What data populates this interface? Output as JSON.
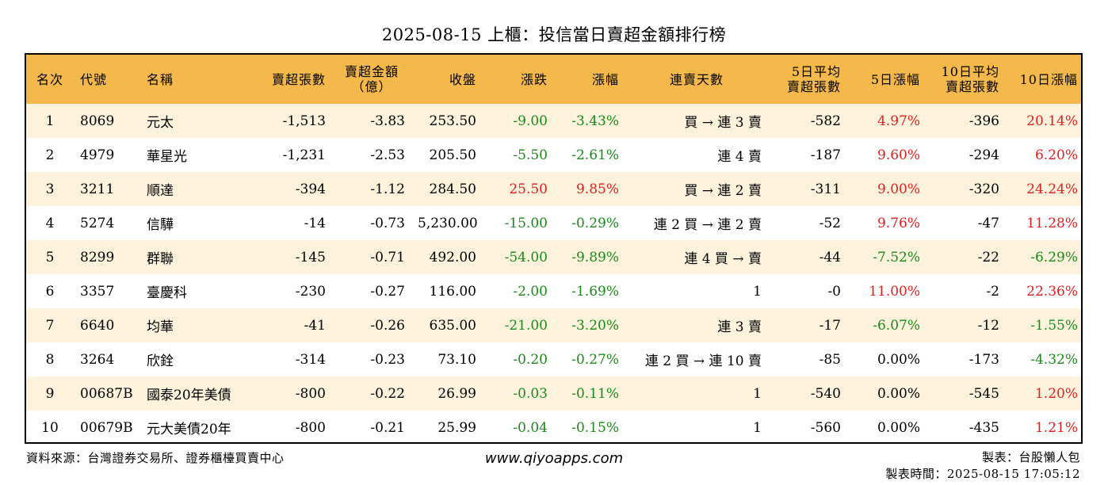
{
  "title": "2025-08-15 上櫃：投信當日賣超金額排行榜",
  "headers": {
    "rank": "名次",
    "code": "代號",
    "name": "名稱",
    "sell_lots": "賣超張數",
    "sell_amount_1": "賣超金額",
    "sell_amount_2": "（億）",
    "close": "收盤",
    "change": "漲跌",
    "pct": "漲幅",
    "streak": "連賣天數",
    "avg5_1": "5日平均",
    "avg5_2": "賣超張數",
    "pct5": "5日漲幅",
    "avg10_1": "10日平均",
    "avg10_2": "賣超張數",
    "pct10": "10日漲幅"
  },
  "rows": [
    {
      "rank": "1",
      "code": "8069",
      "name": "元太",
      "sell_lots": "-1,513",
      "sell_amount": "-3.83",
      "close": "253.50",
      "change": "-9.00",
      "change_color": "green",
      "pct": "-3.43%",
      "pct_color": "green",
      "streak": "買 → 連 3 賣",
      "avg5": "-582",
      "pct5": "4.97%",
      "pct5_color": "red",
      "avg10": "-396",
      "pct10": "20.14%",
      "pct10_color": "red"
    },
    {
      "rank": "2",
      "code": "4979",
      "name": "華星光",
      "sell_lots": "-1,231",
      "sell_amount": "-2.53",
      "close": "205.50",
      "change": "-5.50",
      "change_color": "green",
      "pct": "-2.61%",
      "pct_color": "green",
      "streak": "連 4 賣",
      "avg5": "-187",
      "pct5": "9.60%",
      "pct5_color": "red",
      "avg10": "-294",
      "pct10": "6.20%",
      "pct10_color": "red"
    },
    {
      "rank": "3",
      "code": "3211",
      "name": "順達",
      "sell_lots": "-394",
      "sell_amount": "-1.12",
      "close": "284.50",
      "change": "25.50",
      "change_color": "red",
      "pct": "9.85%",
      "pct_color": "red",
      "streak": "買 → 連 2 賣",
      "avg5": "-311",
      "pct5": "9.00%",
      "pct5_color": "red",
      "avg10": "-320",
      "pct10": "24.24%",
      "pct10_color": "red"
    },
    {
      "rank": "4",
      "code": "5274",
      "name": "信驊",
      "sell_lots": "-14",
      "sell_amount": "-0.73",
      "close": "5,230.00",
      "change": "-15.00",
      "change_color": "green",
      "pct": "-0.29%",
      "pct_color": "green",
      "streak": "連 2 買 → 連 2 賣",
      "avg5": "-52",
      "pct5": "9.76%",
      "pct5_color": "red",
      "avg10": "-47",
      "pct10": "11.28%",
      "pct10_color": "red"
    },
    {
      "rank": "5",
      "code": "8299",
      "name": "群聯",
      "sell_lots": "-145",
      "sell_amount": "-0.71",
      "close": "492.00",
      "change": "-54.00",
      "change_color": "green",
      "pct": "-9.89%",
      "pct_color": "green",
      "streak": "連 4 買 → 賣",
      "avg5": "-44",
      "pct5": "-7.52%",
      "pct5_color": "green",
      "avg10": "-22",
      "pct10": "-6.29%",
      "pct10_color": "green"
    },
    {
      "rank": "6",
      "code": "3357",
      "name": "臺慶科",
      "sell_lots": "-230",
      "sell_amount": "-0.27",
      "close": "116.00",
      "change": "-2.00",
      "change_color": "green",
      "pct": "-1.69%",
      "pct_color": "green",
      "streak": "1",
      "avg5": "-0",
      "pct5": "11.00%",
      "pct5_color": "red",
      "avg10": "-2",
      "pct10": "22.36%",
      "pct10_color": "red"
    },
    {
      "rank": "7",
      "code": "6640",
      "name": "均華",
      "sell_lots": "-41",
      "sell_amount": "-0.26",
      "close": "635.00",
      "change": "-21.00",
      "change_color": "green",
      "pct": "-3.20%",
      "pct_color": "green",
      "streak": "連 3 賣",
      "avg5": "-17",
      "pct5": "-6.07%",
      "pct5_color": "green",
      "avg10": "-12",
      "pct10": "-1.55%",
      "pct10_color": "green"
    },
    {
      "rank": "8",
      "code": "3264",
      "name": "欣銓",
      "sell_lots": "-314",
      "sell_amount": "-0.23",
      "close": "73.10",
      "change": "-0.20",
      "change_color": "green",
      "pct": "-0.27%",
      "pct_color": "green",
      "streak": "連 2 買 → 連 10 賣",
      "avg5": "-85",
      "pct5": "0.00%",
      "pct5_color": "black",
      "avg10": "-173",
      "pct10": "-4.32%",
      "pct10_color": "green"
    },
    {
      "rank": "9",
      "code": "00687B",
      "name": "國泰20年美債",
      "sell_lots": "-800",
      "sell_amount": "-0.22",
      "close": "26.99",
      "change": "-0.03",
      "change_color": "green",
      "pct": "-0.11%",
      "pct_color": "green",
      "streak": "1",
      "avg5": "-540",
      "pct5": "0.00%",
      "pct5_color": "black",
      "avg10": "-545",
      "pct10": "1.20%",
      "pct10_color": "red"
    },
    {
      "rank": "10",
      "code": "00679B",
      "name": "元大美債20年",
      "sell_lots": "-800",
      "sell_amount": "-0.21",
      "close": "25.99",
      "change": "-0.04",
      "change_color": "green",
      "pct": "-0.15%",
      "pct_color": "green",
      "streak": "1",
      "avg5": "-560",
      "pct5": "0.00%",
      "pct5_color": "black",
      "avg10": "-435",
      "pct10": "1.21%",
      "pct10_color": "red"
    }
  ],
  "footer": {
    "source": "資料來源：台灣證券交易所、證券櫃檯買賣中心",
    "website": "www.qiyoapps.com",
    "maker": "製表：台股懶人包",
    "made_time": "製表時間：2025-08-15 17:05:12"
  },
  "colors": {
    "header_bg": "#f5b84a",
    "odd_row_bg": "#fdf3dc",
    "up_red": "#e0201e",
    "down_green": "#1a8a1a"
  }
}
